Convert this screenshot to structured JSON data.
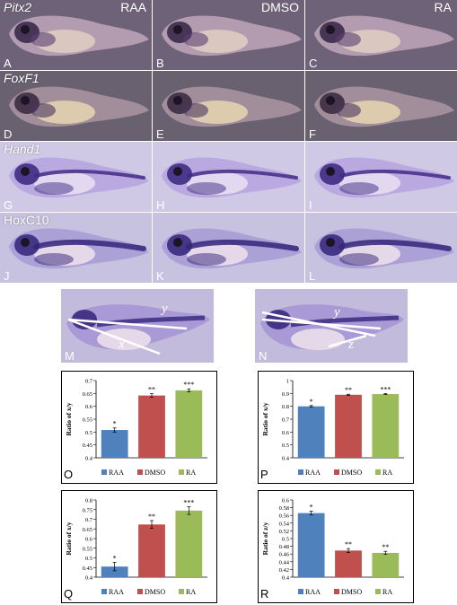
{
  "conditions": [
    "RAA",
    "DMSO",
    "RA"
  ],
  "genes": [
    "Pitx2",
    "FoxF1",
    "Hand1",
    "HoxC10"
  ],
  "panel_letters": [
    [
      "A",
      "B",
      "C"
    ],
    [
      "D",
      "E",
      "F"
    ],
    [
      "G",
      "H",
      "I"
    ],
    [
      "J",
      "K",
      "L"
    ]
  ],
  "measure_panels": [
    {
      "letter": "M",
      "labels": [
        "y",
        "x"
      ]
    },
    {
      "letter": "N",
      "labels": [
        "y",
        "z"
      ]
    }
  ],
  "colors": {
    "RAA": "#4f81bd",
    "DMSO": "#c0504d",
    "RA": "#9bbb59",
    "row_bg": [
      "#6e6278",
      "#696070",
      "#d0c9e6",
      "#c7c2df"
    ]
  },
  "chart_data": [
    {
      "type": "bar",
      "letter": "O",
      "categories": [
        "RAA",
        "DMSO",
        "RA"
      ],
      "values": [
        0.508,
        0.642,
        0.662
      ],
      "errors": [
        0.008,
        0.007,
        0.006
      ],
      "significance": [
        "*",
        "**",
        "***"
      ],
      "ylabel": "Ratio of x/y",
      "ylim": [
        0.4,
        0.7
      ],
      "yticks": [
        0.4,
        0.45,
        0.5,
        0.55,
        0.6,
        0.65,
        0.7
      ],
      "yticklabels": [
        "0.4",
        "0.45",
        "0.5",
        "0.55",
        "0.6",
        "0.65",
        "0.7"
      ],
      "legend": "bottom"
    },
    {
      "type": "bar",
      "letter": "P",
      "categories": [
        "RAA",
        "DMSO",
        "RA"
      ],
      "values": [
        0.8,
        0.89,
        0.895
      ],
      "errors": [
        0.006,
        0.004,
        0.004
      ],
      "significance": [
        "*",
        "**",
        "***"
      ],
      "ylabel": "Ratio of x/y",
      "ylim": [
        0.4,
        1.0
      ],
      "yticks": [
        0.4,
        0.5,
        0.6,
        0.7,
        0.8,
        0.9,
        1.0
      ],
      "yticklabels": [
        "0.4",
        "0.5",
        "0.6",
        "0.7",
        "0.8",
        "0.9",
        "1"
      ],
      "legend": "bottom"
    },
    {
      "type": "bar",
      "letter": "Q",
      "categories": [
        "RAA",
        "DMSO",
        "RA"
      ],
      "values": [
        0.455,
        0.673,
        0.745
      ],
      "errors": [
        0.022,
        0.02,
        0.02
      ],
      "significance": [
        "*",
        "**",
        "***"
      ],
      "ylabel": "Ratio of x/y",
      "ylim": [
        0.4,
        0.8
      ],
      "yticks": [
        0.4,
        0.45,
        0.5,
        0.55,
        0.6,
        0.65,
        0.7,
        0.75,
        0.8
      ],
      "yticklabels": [
        "0.4",
        "0.45",
        "0.5",
        "0.55",
        "0.6",
        "0.65",
        "0.7",
        "0.75",
        "0.8"
      ],
      "legend": "bottom"
    },
    {
      "type": "bar",
      "letter": "R",
      "categories": [
        "RAA",
        "DMSO",
        "RA"
      ],
      "values": [
        0.566,
        0.469,
        0.463
      ],
      "errors": [
        0.005,
        0.005,
        0.004
      ],
      "significance": [
        "*",
        "**",
        "**"
      ],
      "ylabel": "Ratio of z/y",
      "ylim": [
        0.4,
        0.6
      ],
      "yticks": [
        0.4,
        0.42,
        0.44,
        0.46,
        0.48,
        0.5,
        0.52,
        0.54,
        0.56,
        0.58,
        0.6
      ],
      "yticklabels": [
        "0.4",
        "0.42",
        "0.44",
        "0.46",
        "0.48",
        "0.5",
        "0.52",
        "0.54",
        "0.56",
        "0.58",
        "0.6"
      ],
      "legend": "bottom"
    }
  ]
}
